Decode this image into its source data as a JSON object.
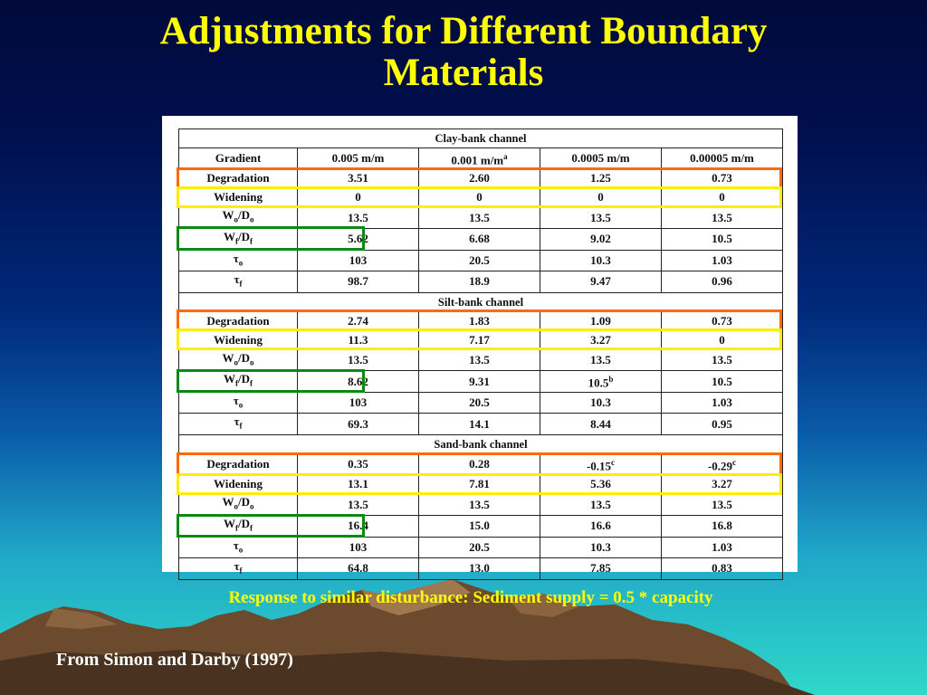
{
  "title_line1": "Adjustments for Different Boundary",
  "title_line2": "Materials",
  "table": {
    "columns": [
      "Gradient",
      "0.005 m/m",
      "0.001 m/m",
      "0.0005 m/m",
      "0.00005 m/m"
    ],
    "col2_superscript": "a",
    "sections": [
      {
        "name": "Clay-bank channel",
        "rows": [
          {
            "label": "Degradation",
            "values": [
              "3.51",
              "2.60",
              "1.25",
              "0.73"
            ]
          },
          {
            "label": "Widening",
            "values": [
              "0",
              "0",
              "0",
              "0"
            ]
          },
          {
            "label_main": "W",
            "label_sub": "o",
            "label_mid": "/D",
            "label_sub2": "o",
            "values": [
              "13.5",
              "13.5",
              "13.5",
              "13.5"
            ]
          },
          {
            "label_main": "W",
            "label_sub": "f",
            "label_mid": "/D",
            "label_sub2": "f",
            "values": [
              "5.62",
              "6.68",
              "9.02",
              "10.5"
            ]
          },
          {
            "label_main": "τ",
            "label_sub": "o",
            "values": [
              "103",
              "20.5",
              "10.3",
              "1.03"
            ]
          },
          {
            "label_main": "τ",
            "label_sub": "f",
            "values": [
              "98.7",
              "18.9",
              "9.47",
              "0.96"
            ]
          }
        ]
      },
      {
        "name": "Silt-bank channel",
        "rows": [
          {
            "label": "Degradation",
            "values": [
              "2.74",
              "1.83",
              "1.09",
              "0.73"
            ]
          },
          {
            "label": "Widening",
            "values": [
              "11.3",
              "7.17",
              "3.27",
              "0"
            ]
          },
          {
            "label_main": "W",
            "label_sub": "o",
            "label_mid": "/D",
            "label_sub2": "o",
            "values": [
              "13.5",
              "13.5",
              "13.5",
              "13.5"
            ]
          },
          {
            "label_main": "W",
            "label_sub": "f",
            "label_mid": "/D",
            "label_sub2": "f",
            "values": [
              "8.62",
              "9.31",
              "10.5",
              "10.5"
            ],
            "sup": [
              "",
              "",
              "b",
              ""
            ]
          },
          {
            "label_main": "τ",
            "label_sub": "o",
            "values": [
              "103",
              "20.5",
              "10.3",
              "1.03"
            ]
          },
          {
            "label_main": "τ",
            "label_sub": "f",
            "values": [
              "69.3",
              "14.1",
              "8.44",
              "0.95"
            ]
          }
        ]
      },
      {
        "name": "Sand-bank channel",
        "rows": [
          {
            "label": "Degradation",
            "values": [
              "0.35",
              "0.28",
              "-0.15",
              "-0.29"
            ],
            "sup": [
              "",
              "",
              "c",
              "c"
            ]
          },
          {
            "label": "Widening",
            "values": [
              "13.1",
              "7.81",
              "5.36",
              "3.27"
            ]
          },
          {
            "label_main": "W",
            "label_sub": "o",
            "label_mid": "/D",
            "label_sub2": "o",
            "values": [
              "13.5",
              "13.5",
              "13.5",
              "13.5"
            ]
          },
          {
            "label_main": "W",
            "label_sub": "f",
            "label_mid": "/D",
            "label_sub2": "f",
            "values": [
              "16.4",
              "15.0",
              "16.6",
              "16.8"
            ]
          },
          {
            "label_main": "τ",
            "label_sub": "o",
            "values": [
              "103",
              "20.5",
              "10.3",
              "1.03"
            ]
          },
          {
            "label_main": "τ",
            "label_sub": "f",
            "values": [
              "64.8",
              "13.0",
              "7.85",
              "0.83"
            ]
          }
        ]
      }
    ]
  },
  "note": "Response to similar disturbance: Sediment supply = 0.5 * capacity",
  "credit": "From Simon and Darby (1997)",
  "colors": {
    "title": "#ffff00",
    "degradation_highlight": "#ff6a00",
    "widening_highlight": "#ffee00",
    "wf_highlight": "#0a8a12"
  }
}
